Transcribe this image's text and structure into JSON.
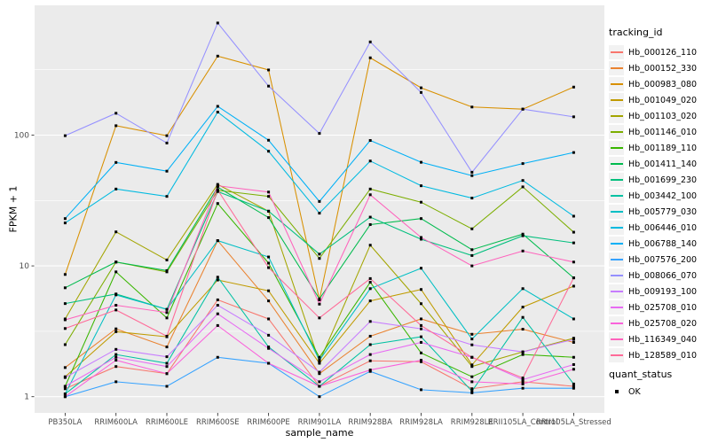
{
  "chart_data": {
    "type": "line",
    "title": "",
    "xlabel": "sample_name",
    "ylabel": "FPKM + 1",
    "x_categories": [
      "PB350LA",
      "RRIM600LA",
      "RRIM600LE",
      "RRIM600SE",
      "RRIM600PE",
      "RRIM901LA",
      "RRIM928BA",
      "RRIM928LA",
      "RRIM928LE",
      "RRII105LA_Control",
      "RRII105LA_Stressed"
    ],
    "y_axis": {
      "scale": "log10",
      "tick_values": [
        1,
        10,
        100
      ],
      "tick_labels": [
        "1",
        "10",
        "100"
      ],
      "minor_tick_values": [
        3.1623,
        31.623,
        316.23
      ],
      "range_approx": [
        0.75,
        980
      ]
    },
    "legend": {
      "position": "right",
      "series_title": "tracking_id",
      "status_title": "quant_status",
      "status_items": [
        {
          "label": "OK",
          "marker": "black-square"
        }
      ]
    },
    "style_colors": {
      "panel_bg": "#EBEBEB",
      "grid": "#FFFFFF",
      "axis_text": "#4D4D4D",
      "tick_mark": "#333333",
      "point": "#000000",
      "legend_key_bg": "#F2F2F2"
    },
    "series": [
      {
        "name": "Hb_000126_110",
        "color": "#F8766D",
        "values": [
          1.15,
          1.7,
          1.5,
          5.5,
          3.93,
          1.2,
          1.88,
          1.85,
          1.15,
          1.3,
          1.2
        ]
      },
      {
        "name": "Hb_000152_330",
        "color": "#EA8331",
        "values": [
          1.67,
          3.3,
          2.4,
          15.6,
          5.4,
          1.5,
          2.9,
          3.93,
          3.0,
          3.28,
          2.6
        ]
      },
      {
        "name": "Hb_000983_080",
        "color": "#D89000",
        "values": [
          8.6,
          118,
          99,
          402,
          315,
          5.5,
          390,
          230,
          164,
          158,
          233
        ]
      },
      {
        "name": "Hb_001049_020",
        "color": "#C09B00",
        "values": [
          1.42,
          3.14,
          2.87,
          7.8,
          6.45,
          1.8,
          5.4,
          6.6,
          1.75,
          4.84,
          7.0
        ]
      },
      {
        "name": "Hb_001103_020",
        "color": "#A3A500",
        "values": [
          3.93,
          18.2,
          11.1,
          42,
          26.2,
          1.85,
          14.4,
          5.14,
          1.7,
          2.2,
          2.8
        ]
      },
      {
        "name": "Hb_001146_010",
        "color": "#7CAE00",
        "values": [
          2.5,
          10.7,
          9.0,
          37.8,
          34,
          11.4,
          38.7,
          30.7,
          19.2,
          40.2,
          18.1
        ]
      },
      {
        "name": "Hb_001189_110",
        "color": "#39B600",
        "values": [
          1.2,
          9.0,
          4.0,
          30,
          10.5,
          2.0,
          7.5,
          2.16,
          1.42,
          2.1,
          2.0
        ]
      },
      {
        "name": "Hb_001411_140",
        "color": "#00BB4E",
        "values": [
          6.8,
          10.7,
          9.2,
          40,
          23.4,
          5.6,
          20.7,
          23,
          13.3,
          17.5,
          8.1
        ]
      },
      {
        "name": "Hb_001699_230",
        "color": "#00BF7D",
        "values": [
          5.15,
          6.1,
          4.65,
          37,
          26.2,
          12.3,
          23.6,
          16,
          12,
          17,
          15
        ]
      },
      {
        "name": "Hb_003442_100",
        "color": "#00C1A3",
        "values": [
          1.05,
          2.1,
          1.8,
          8.2,
          2.4,
          1.2,
          2.5,
          2.87,
          1.1,
          4.04,
          1.25
        ]
      },
      {
        "name": "Hb_005779_030",
        "color": "#00BFC4",
        "values": [
          1.05,
          6.0,
          4.65,
          15.6,
          11.7,
          1.9,
          6.7,
          9.6,
          2.76,
          6.7,
          3.93
        ]
      },
      {
        "name": "Hb_006446_010",
        "color": "#00BAE0",
        "values": [
          21.3,
          38.7,
          34,
          150,
          75.3,
          25.3,
          63.4,
          41,
          33,
          45,
          24
        ]
      },
      {
        "name": "Hb_006788_140",
        "color": "#00B0F6",
        "values": [
          23,
          61.8,
          53,
          166,
          91.4,
          31.1,
          91,
          62,
          49,
          60.6,
          73.6
        ]
      },
      {
        "name": "Hb_007576_200",
        "color": "#35A2FF",
        "values": [
          1.0,
          1.3,
          1.2,
          2.0,
          1.8,
          1.0,
          1.56,
          1.13,
          1.07,
          1.16,
          1.16
        ]
      },
      {
        "name": "Hb_008066_070",
        "color": "#9590FF",
        "values": [
          99,
          147,
          87,
          720,
          237,
          103,
          516,
          212,
          52,
          158,
          138
        ]
      },
      {
        "name": "Hb_009193_100",
        "color": "#C77CFF",
        "values": [
          1.4,
          2.3,
          2.02,
          5.0,
          2.95,
          1.54,
          3.76,
          3.3,
          2.49,
          2.2,
          2.74
        ]
      },
      {
        "name": "Hb_025708_010",
        "color": "#E76BF3",
        "values": [
          1.2,
          2.0,
          1.7,
          4.3,
          2.34,
          1.3,
          2.1,
          2.6,
          2.0,
          1.35,
          1.76
        ]
      },
      {
        "name": "Hb_025708_020",
        "color": "#FA62DB",
        "values": [
          1.0,
          1.9,
          1.5,
          3.5,
          1.8,
          1.2,
          1.6,
          1.9,
          1.3,
          1.25,
          1.62
        ]
      },
      {
        "name": "Hb_116349_040",
        "color": "#FF62BC",
        "values": [
          3.87,
          5.0,
          4.4,
          41,
          36.7,
          5.1,
          35,
          16.5,
          10,
          13,
          10.7
        ]
      },
      {
        "name": "Hb_128589_010",
        "color": "#FF6A98",
        "values": [
          3.32,
          4.6,
          2.9,
          38,
          9.7,
          4.0,
          8.0,
          3.5,
          2.0,
          1.39,
          8.1
        ]
      }
    ]
  }
}
